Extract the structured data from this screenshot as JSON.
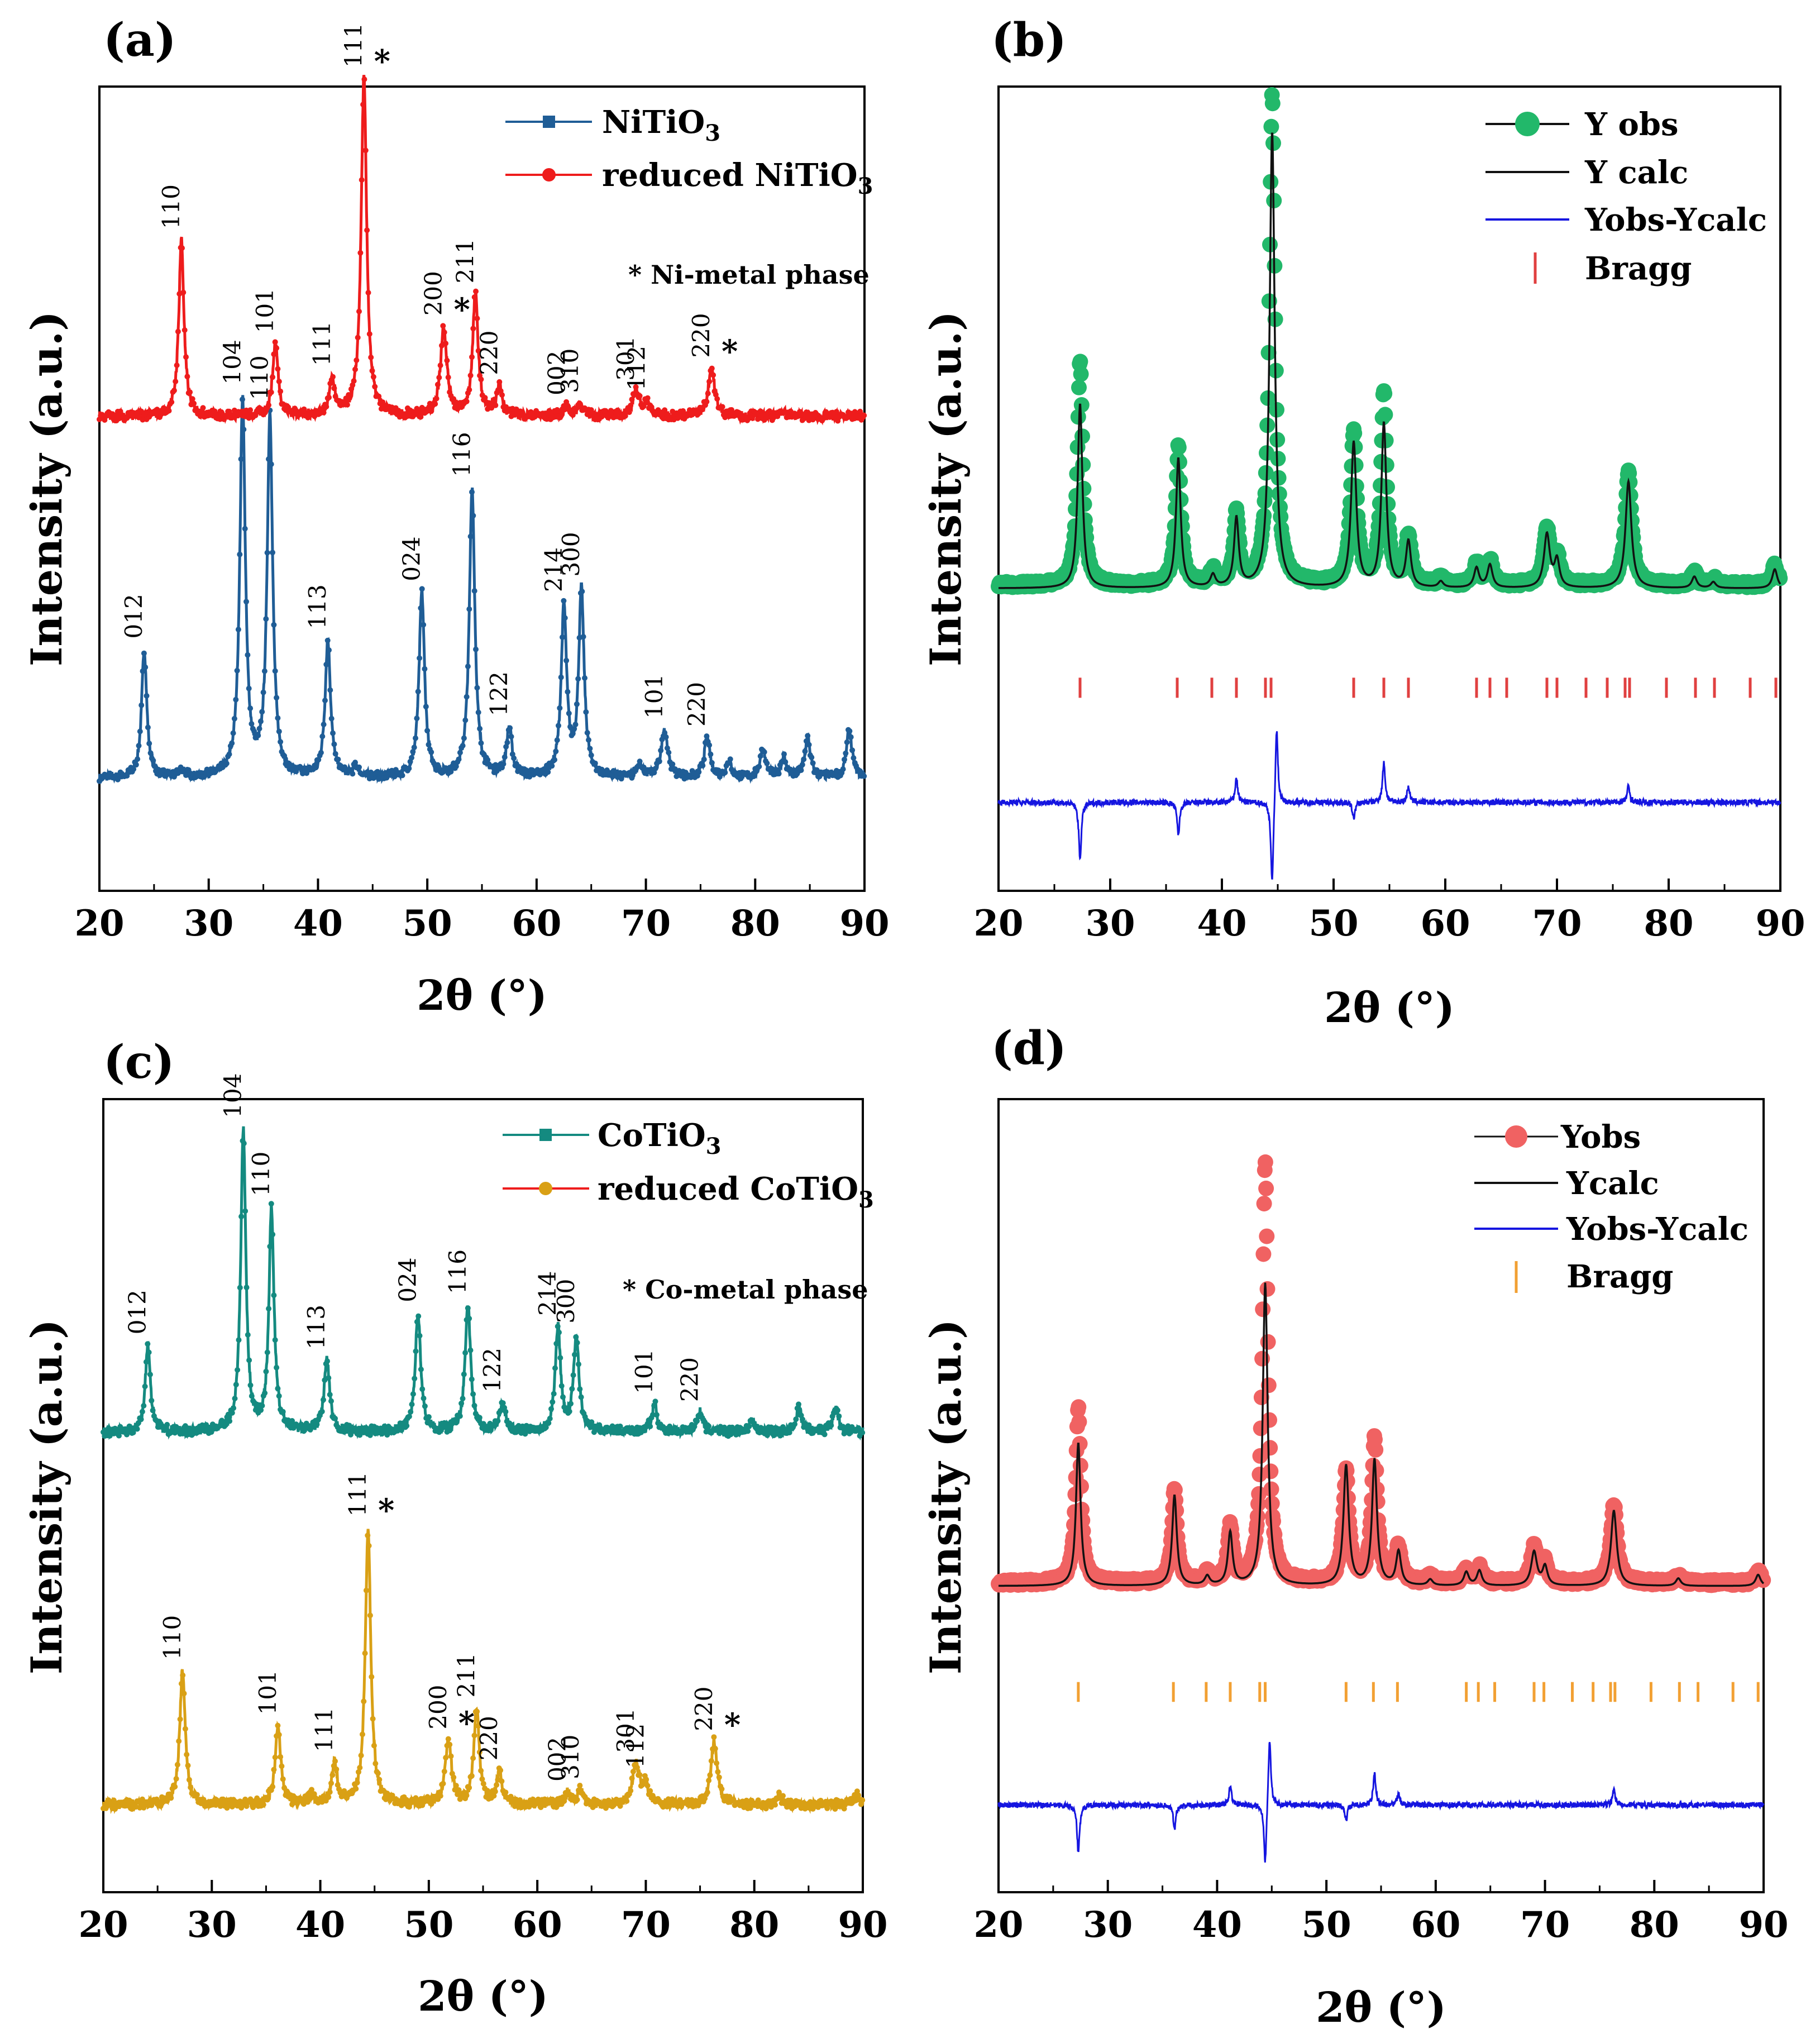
{
  "colors": {
    "ni_pristine": "#1f5d96",
    "ni_reduced": "#ee1c1c",
    "co_pristine": "#148a80",
    "co_reduced": "#d9a015",
    "yobs_b": "#22b86a",
    "yobs_d": "#f06262",
    "ycalc": "#111111",
    "diff": "#1515e0",
    "bragg_b": "#e04040",
    "bragg_d": "#f2a033"
  },
  "chart_data": [
    {
      "panel": "(a)",
      "type": "line",
      "xlabel": "2θ (°)",
      "ylabel": "Intensity (a.u.)",
      "xlim": [
        20,
        90
      ],
      "ylim": [
        0,
        100
      ],
      "xticks": [
        "20",
        "30",
        "40",
        "50",
        "60",
        "70",
        "80",
        "90"
      ],
      "note": "* Ni-metal phase",
      "series": [
        {
          "name": "NiTiO3",
          "legend_main": "NiTiO",
          "legend_sub": "3",
          "color": "#1f5d96",
          "baseline": 14,
          "noise": 0.5,
          "peaks": [
            [
              24.1,
              16,
              0.28
            ],
            [
              27.6,
              1,
              0.3
            ],
            [
              33.1,
              47,
              0.3
            ],
            [
              35.6,
              45,
              0.3
            ],
            [
              40.9,
              17,
              0.3
            ],
            [
              43.5,
              1.2,
              0.3
            ],
            [
              49.5,
              23,
              0.3
            ],
            [
              54.1,
              36,
              0.3
            ],
            [
              57.5,
              6,
              0.3
            ],
            [
              62.5,
              21,
              0.3
            ],
            [
              64.1,
              23,
              0.3
            ],
            [
              69.4,
              1.5,
              0.3
            ],
            [
              71.7,
              6,
              0.35
            ],
            [
              75.6,
              5,
              0.3
            ],
            [
              77.6,
              2,
              0.3
            ],
            [
              80.7,
              3.5,
              0.3
            ],
            [
              82.6,
              2.5,
              0.3
            ],
            [
              84.8,
              5,
              0.3
            ],
            [
              88.6,
              6,
              0.3
            ]
          ],
          "labels": [
            [
              24.1,
              "012"
            ],
            [
              33.1,
              "104"
            ],
            [
              35.6,
              "110"
            ],
            [
              40.9,
              "113"
            ],
            [
              49.5,
              "024"
            ],
            [
              54.1,
              "116"
            ],
            [
              57.5,
              "122"
            ],
            [
              62.5,
              "214"
            ],
            [
              64.1,
              "300"
            ],
            [
              71.7,
              "101"
            ],
            [
              75.6,
              "220"
            ]
          ],
          "stars": []
        },
        {
          "name": "reduced NiTiO3",
          "legend_main": "reduced NiTiO",
          "legend_sub": "3",
          "color": "#ee1c1c",
          "baseline": 59,
          "noise": 0.6,
          "peaks": [
            [
              27.5,
              22,
              0.28
            ],
            [
              36.1,
              9,
              0.3
            ],
            [
              41.3,
              4.5,
              0.3
            ],
            [
              44.2,
              42,
              0.3
            ],
            [
              51.5,
              11,
              0.35
            ],
            [
              54.4,
              15,
              0.3
            ],
            [
              56.6,
              3.5,
              0.3
            ],
            [
              62.8,
              1.2,
              0.3
            ],
            [
              64.0,
              1.5,
              0.3
            ],
            [
              69.1,
              3,
              0.4
            ],
            [
              70.1,
              1.5,
              0.3
            ],
            [
              76.0,
              6,
              0.35
            ],
            [
              82.6,
              0.8,
              0.3
            ]
          ],
          "labels": [
            [
              27.5,
              "110"
            ],
            [
              36.1,
              "101"
            ],
            [
              41.3,
              "111"
            ],
            [
              44.2,
              "111"
            ],
            [
              51.5,
              "200"
            ],
            [
              54.4,
              "211"
            ],
            [
              56.6,
              "220"
            ],
            [
              62.8,
              "002"
            ],
            [
              64.0,
              "310"
            ],
            [
              69.1,
              "301"
            ],
            [
              70.1,
              "112"
            ],
            [
              76.0,
              "220"
            ]
          ],
          "stars": [
            44.2,
            51.5,
            76.0
          ]
        }
      ]
    },
    {
      "panel": "(b)",
      "type": "line",
      "xlabel": "2θ (°)",
      "ylabel": "Intensity (a.u.)",
      "xlim": [
        20,
        90
      ],
      "ylim": [
        0,
        100
      ],
      "xticks": [
        "20",
        "30",
        "40",
        "50",
        "60",
        "70",
        "80",
        "90"
      ],
      "legend": [
        "Y obs",
        "Y calc",
        "Yobs-Ycalc",
        "Bragg"
      ],
      "obs": {
        "color": "#22b86a",
        "baseline": 38,
        "noise": 0.35,
        "peaks": [
          [
            27.3,
            28,
            0.28
          ],
          [
            36.1,
            17,
            0.28
          ],
          [
            39.2,
            1.6,
            0.3
          ],
          [
            41.3,
            9,
            0.28
          ],
          [
            44.5,
            61,
            0.3
          ],
          [
            51.8,
            19,
            0.32
          ],
          [
            54.5,
            24,
            0.3
          ],
          [
            56.7,
            6,
            0.3
          ],
          [
            59.6,
            0.8,
            0.3
          ],
          [
            62.8,
            2.6,
            0.3
          ],
          [
            64.0,
            3,
            0.3
          ],
          [
            69.1,
            7,
            0.35
          ],
          [
            70.0,
            3.5,
            0.3
          ],
          [
            76.4,
            14,
            0.35
          ],
          [
            82.3,
            1.5,
            0.3
          ],
          [
            84.0,
            0.8,
            0.3
          ],
          [
            89.5,
            2.5,
            0.3
          ]
        ]
      },
      "calc_scale": [
        [
          27.3,
          0.82
        ],
        [
          44.5,
          0.93
        ],
        [
          54.5,
          0.85
        ]
      ],
      "diff": {
        "baseline": 11,
        "noise": 0.35,
        "features": [
          [
            27.3,
            -7
          ],
          [
            36.1,
            -4
          ],
          [
            41.3,
            3
          ],
          [
            44.5,
            -11
          ],
          [
            44.9,
            10
          ],
          [
            54.5,
            5
          ],
          [
            56.7,
            2
          ],
          [
            51.8,
            -2
          ],
          [
            76.4,
            2
          ]
        ]
      },
      "bragg": {
        "color": "#e04040",
        "positions": [
          27.3,
          36.0,
          39.1,
          41.3,
          43.9,
          44.4,
          51.8,
          54.5,
          56.7,
          62.8,
          64.0,
          65.5,
          69.1,
          70.0,
          72.6,
          74.5,
          76.1,
          76.5,
          79.8,
          82.4,
          84.1,
          87.3,
          89.6
        ]
      }
    },
    {
      "panel": "(c)",
      "type": "line",
      "xlabel": "2θ (°)",
      "ylabel": "Intensity (a.u.)",
      "xlim": [
        20,
        90
      ],
      "ylim": [
        0,
        100
      ],
      "xticks": [
        "20",
        "30",
        "40",
        "50",
        "60",
        "70",
        "80",
        "90"
      ],
      "note": "* Co-metal phase",
      "series": [
        {
          "name": "CoTiO3",
          "legend_main": "CoTiO",
          "legend_sub": "3",
          "color": "#148a80",
          "baseline": 58,
          "noise": 0.6,
          "peaks": [
            [
              24.1,
              11,
              0.28
            ],
            [
              32.9,
              38,
              0.28
            ],
            [
              35.5,
              28,
              0.28
            ],
            [
              40.6,
              9,
              0.3
            ],
            [
              49.0,
              15,
              0.3
            ],
            [
              53.6,
              16,
              0.3
            ],
            [
              56.8,
              3.5,
              0.3
            ],
            [
              61.9,
              13,
              0.3
            ],
            [
              63.6,
              12,
              0.3
            ],
            [
              70.8,
              3.5,
              0.3
            ],
            [
              75.0,
              2.5,
              0.3
            ],
            [
              79.8,
              1.5,
              0.3
            ],
            [
              84.1,
              3,
              0.3
            ],
            [
              87.5,
              3,
              0.3
            ]
          ],
          "labels": [
            [
              24.1,
              "012"
            ],
            [
              32.9,
              "104"
            ],
            [
              35.5,
              "110"
            ],
            [
              40.6,
              "113"
            ],
            [
              49.0,
              "024"
            ],
            [
              53.6,
              "116"
            ],
            [
              56.8,
              "122"
            ],
            [
              61.9,
              "214"
            ],
            [
              63.6,
              "300"
            ],
            [
              70.8,
              "101"
            ],
            [
              75.0,
              "220"
            ]
          ],
          "stars": []
        },
        {
          "name": "reduced CoTiO3",
          "legend_main": "reduced CoTiO",
          "legend_sub": "3",
          "color": "#d9a015",
          "baseline": 11,
          "noise": 0.6,
          "peaks": [
            [
              27.3,
              17,
              0.3
            ],
            [
              36.1,
              10,
              0.3
            ],
            [
              39.2,
              1,
              0.3
            ],
            [
              41.3,
              5,
              0.3
            ],
            [
              44.4,
              35,
              0.3
            ],
            [
              51.8,
              8,
              0.35
            ],
            [
              54.4,
              12,
              0.3
            ],
            [
              56.5,
              4,
              0.3
            ],
            [
              62.8,
              1.5,
              0.3
            ],
            [
              64.0,
              1.8,
              0.3
            ],
            [
              69.1,
              5,
              0.4
            ],
            [
              70.0,
              2.5,
              0.3
            ],
            [
              76.3,
              8,
              0.35
            ],
            [
              82.3,
              1.2,
              0.3
            ],
            [
              89.5,
              1.2,
              0.3
            ]
          ],
          "labels": [
            [
              27.3,
              "110"
            ],
            [
              36.1,
              "101"
            ],
            [
              41.3,
              "111"
            ],
            [
              44.4,
              "111"
            ],
            [
              51.8,
              "200"
            ],
            [
              54.4,
              "211"
            ],
            [
              56.5,
              "220"
            ],
            [
              62.8,
              "002"
            ],
            [
              64.0,
              "310"
            ],
            [
              69.1,
              "301"
            ],
            [
              70.0,
              "112"
            ],
            [
              76.3,
              "220"
            ]
          ],
          "stars": [
            44.4,
            51.8,
            76.3
          ]
        }
      ]
    },
    {
      "panel": "(d)",
      "type": "line",
      "xlabel": "2θ (°)",
      "ylabel": "Intensity (a.u.)",
      "xlim": [
        20,
        90
      ],
      "ylim": [
        0,
        100
      ],
      "xticks": [
        "20",
        "30",
        "40",
        "50",
        "60",
        "70",
        "80",
        "90"
      ],
      "legend": [
        "Yobs",
        "Ycalc",
        "Yobs-Ycalc",
        "Bragg"
      ],
      "obs": {
        "color": "#f06262",
        "baseline": 39,
        "noise": 0.35,
        "peaks": [
          [
            27.3,
            22,
            0.28
          ],
          [
            36.1,
            12,
            0.28
          ],
          [
            39.1,
            1.2,
            0.3
          ],
          [
            41.2,
            7,
            0.28
          ],
          [
            44.4,
            53,
            0.3
          ],
          [
            51.8,
            14,
            0.32
          ],
          [
            54.4,
            18,
            0.3
          ],
          [
            56.6,
            4.5,
            0.3
          ],
          [
            59.5,
            0.8,
            0.3
          ],
          [
            62.8,
            1.8,
            0.3
          ],
          [
            64.0,
            2,
            0.3
          ],
          [
            69.0,
            4.5,
            0.35
          ],
          [
            70.0,
            2.5,
            0.3
          ],
          [
            76.3,
            10,
            0.35
          ],
          [
            82.2,
            1,
            0.3
          ],
          [
            89.5,
            1.5,
            0.3
          ]
        ]
      },
      "calc_scale": [
        [
          27.3,
          0.82
        ],
        [
          44.4,
          0.72
        ],
        [
          51.8,
          1.08
        ],
        [
          54.4,
          0.88
        ]
      ],
      "diff": {
        "baseline": 11,
        "noise": 0.35,
        "features": [
          [
            27.3,
            -6
          ],
          [
            36.1,
            -3
          ],
          [
            41.2,
            2.5
          ],
          [
            44.4,
            -8
          ],
          [
            44.8,
            9
          ],
          [
            54.4,
            4
          ],
          [
            56.6,
            1.5
          ],
          [
            51.8,
            -2
          ],
          [
            76.3,
            2
          ]
        ]
      },
      "bragg": {
        "color": "#f2a033",
        "positions": [
          27.3,
          36.0,
          39.0,
          41.2,
          43.9,
          44.4,
          51.8,
          54.3,
          56.5,
          62.8,
          63.9,
          65.4,
          69.0,
          69.9,
          72.5,
          74.4,
          76.0,
          76.4,
          79.7,
          82.3,
          84.0,
          87.2,
          89.5
        ]
      }
    }
  ]
}
